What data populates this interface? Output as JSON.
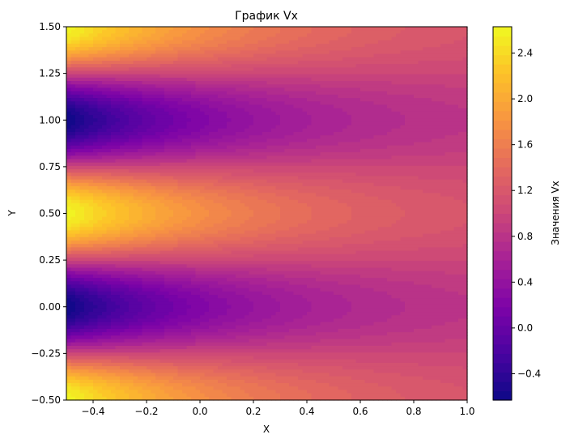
{
  "chart_data": {
    "type": "heatmap",
    "plot_kind": "filled-contour",
    "title": "График Vx",
    "xlabel": "X",
    "ylabel": "Y",
    "colorbar_label": "Значения Vx",
    "colormap": "plasma",
    "xlim": [
      -0.5,
      1.0
    ],
    "ylim": [
      -0.5,
      1.5
    ],
    "xticks": [
      -0.4,
      -0.2,
      0.0,
      0.2,
      0.4,
      0.6,
      0.8,
      1.0
    ],
    "xtick_labels": [
      "−0.4",
      "−0.2",
      "0.0",
      "0.2",
      "0.4",
      "0.6",
      "0.8",
      "1.0"
    ],
    "yticks": [
      -0.5,
      -0.25,
      0.0,
      0.25,
      0.5,
      0.75,
      1.0,
      1.25,
      1.5
    ],
    "ytick_labels": [
      "−0.50",
      "−0.25",
      "0.00",
      "0.25",
      "0.50",
      "0.75",
      "1.00",
      "1.25",
      "1.50"
    ],
    "colorbar_range": [
      -0.63,
      2.63
    ],
    "colorbar_ticks": [
      -0.4,
      0.0,
      0.4,
      0.8,
      1.2,
      1.6,
      2.0,
      2.4
    ],
    "colorbar_tick_labels": [
      "−0.4",
      "0.0",
      "0.4",
      "0.8",
      "1.2",
      "1.6",
      "2.0",
      "2.4"
    ],
    "field": {
      "description_of_pattern": "Vx ≈ 1 − (1.63·e^(−1.5·(x+0.5)))·cos(2πy); minima at y=0 and y=1, maxima at y=−0.5, 0.5, 1.5, decaying toward x=1",
      "baseline": 1.0,
      "amplitude_at_xmin": 1.63,
      "decay_rate": 1.5,
      "y_period": 1.0
    },
    "grid": false,
    "legend": "none"
  }
}
